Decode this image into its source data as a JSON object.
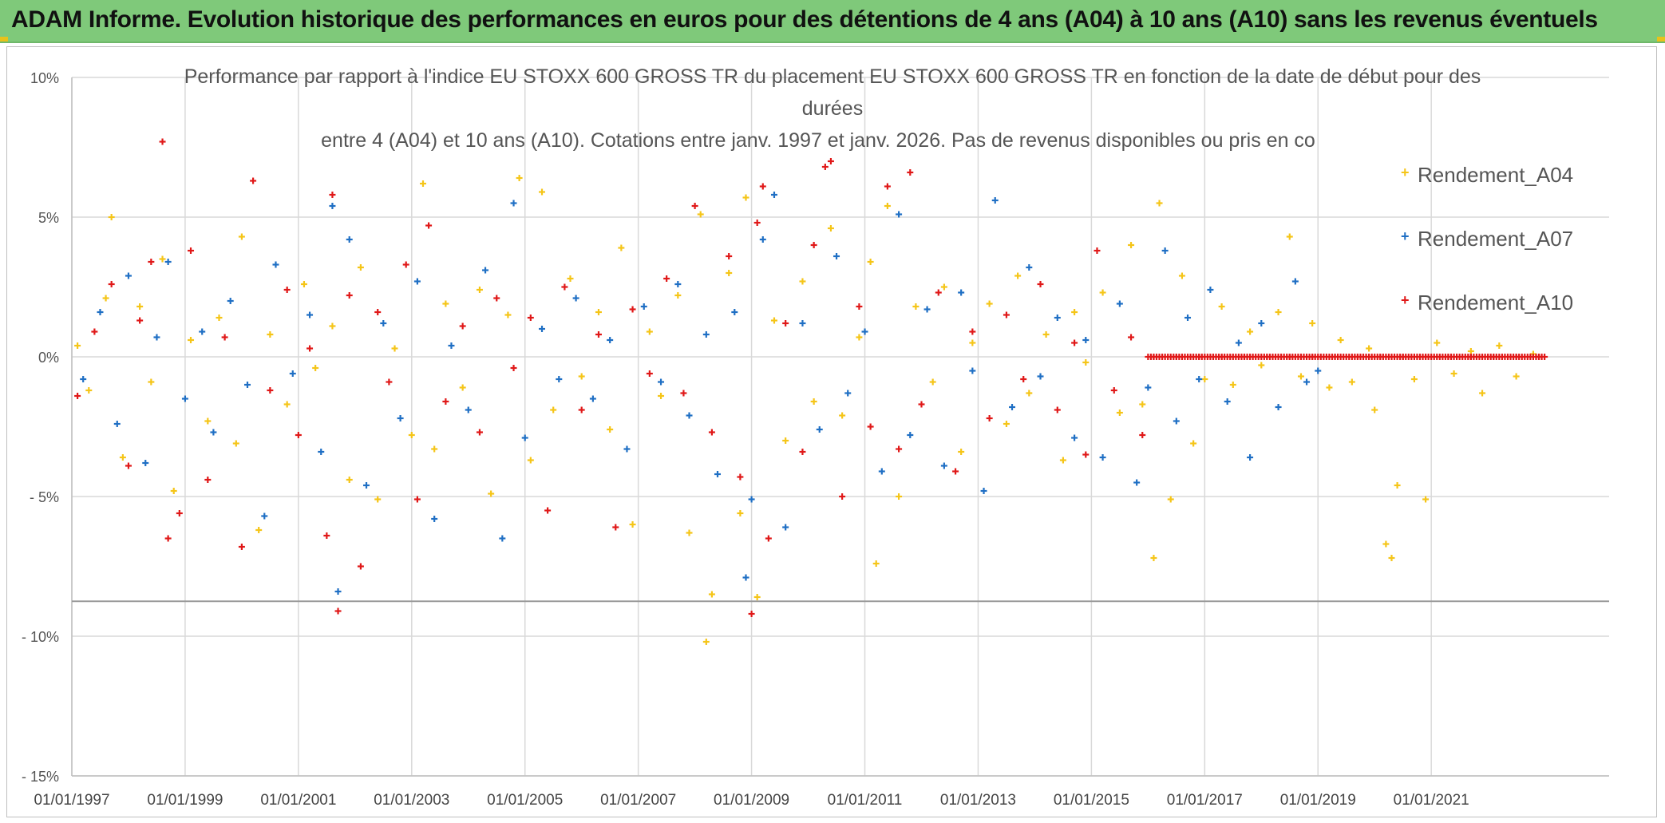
{
  "banner": {
    "title": "ADAM Informe. Evolution historique des performances en euros pour des détentions de 4 ans (A04) à 10 ans (A10) sans les revenus éventuels",
    "color": "#7fc97a"
  },
  "chart_data": {
    "type": "scatter",
    "title_lines": [
      "Performance par rapport à l'indice EU STOXX 600 GROSS TR  du placement EU STOXX 600 GROSS TR en fonction de la date de début pour des",
      "durées",
      "entre 4 (A04) et 10 ans (A10). Cotations entre janv. 1997 et janv. 2026. Pas de revenus disponibles ou pris en co"
    ],
    "xlabel": "",
    "ylabel": "",
    "x_range": [
      1997.0,
      2023.0
    ],
    "ylim": [
      -15,
      10
    ],
    "y_ticks": [
      10,
      5,
      0,
      -5,
      -10,
      -15
    ],
    "y_tick_labels": [
      "10%",
      "5%",
      "0%",
      "- 5%",
      "- 10%",
      "- 15%"
    ],
    "x_ticks": [
      1997,
      1999,
      2001,
      2003,
      2005,
      2007,
      2009,
      2011,
      2013,
      2015,
      2017,
      2019,
      2021
    ],
    "x_tick_labels": [
      "01/01/1997",
      "01/01/1999",
      "01/01/2001",
      "01/01/2003",
      "01/01/2005",
      "01/01/2007",
      "01/01/2009",
      "01/01/2011",
      "01/01/2013",
      "01/01/2015",
      "01/01/2017",
      "01/01/2019",
      "01/01/2021"
    ],
    "grid": true,
    "legend_position": "right",
    "marker": "+",
    "series": [
      {
        "name": "Rendement_A04",
        "color": "#f5c518",
        "points": [
          [
            1997.1,
            0.4
          ],
          [
            1997.3,
            -1.2
          ],
          [
            1997.6,
            2.1
          ],
          [
            1997.7,
            5.0
          ],
          [
            1997.9,
            -3.6
          ],
          [
            1998.2,
            1.8
          ],
          [
            1998.4,
            -0.9
          ],
          [
            1998.6,
            3.5
          ],
          [
            1998.8,
            -4.8
          ],
          [
            1999.1,
            0.6
          ],
          [
            1999.4,
            -2.3
          ],
          [
            1999.6,
            1.4
          ],
          [
            1999.9,
            -3.1
          ],
          [
            2000.0,
            4.3
          ],
          [
            2000.3,
            -6.2
          ],
          [
            2000.5,
            0.8
          ],
          [
            2000.8,
            -1.7
          ],
          [
            2001.1,
            2.6
          ],
          [
            2001.3,
            -0.4
          ],
          [
            2001.6,
            1.1
          ],
          [
            2001.9,
            -4.4
          ],
          [
            2002.1,
            3.2
          ],
          [
            2002.4,
            -5.1
          ],
          [
            2002.7,
            0.3
          ],
          [
            2003.0,
            -2.8
          ],
          [
            2003.2,
            6.2
          ],
          [
            2003.4,
            -3.3
          ],
          [
            2003.6,
            1.9
          ],
          [
            2003.9,
            -1.1
          ],
          [
            2004.2,
            2.4
          ],
          [
            2004.4,
            -4.9
          ],
          [
            2004.7,
            1.5
          ],
          [
            2004.9,
            6.4
          ],
          [
            2005.1,
            -3.7
          ],
          [
            2005.3,
            5.9
          ],
          [
            2005.5,
            -1.9
          ],
          [
            2005.8,
            2.8
          ],
          [
            2006.0,
            -0.7
          ],
          [
            2006.3,
            1.6
          ],
          [
            2006.5,
            -2.6
          ],
          [
            2006.7,
            3.9
          ],
          [
            2006.9,
            -6.0
          ],
          [
            2007.2,
            0.9
          ],
          [
            2007.4,
            -1.4
          ],
          [
            2007.7,
            2.2
          ],
          [
            2007.9,
            -6.3
          ],
          [
            2008.1,
            5.1
          ],
          [
            2008.2,
            -10.2
          ],
          [
            2008.3,
            -8.5
          ],
          [
            2008.6,
            3.0
          ],
          [
            2008.8,
            -5.6
          ],
          [
            2008.9,
            5.7
          ],
          [
            2009.1,
            -8.6
          ],
          [
            2009.4,
            1.3
          ],
          [
            2009.6,
            -3.0
          ],
          [
            2009.9,
            2.7
          ],
          [
            2010.1,
            -1.6
          ],
          [
            2010.4,
            4.6
          ],
          [
            2010.6,
            -2.1
          ],
          [
            2010.9,
            0.7
          ],
          [
            2011.1,
            3.4
          ],
          [
            2011.2,
            -7.4
          ],
          [
            2011.4,
            5.4
          ],
          [
            2011.6,
            -5.0
          ],
          [
            2011.9,
            1.8
          ],
          [
            2012.2,
            -0.9
          ],
          [
            2012.4,
            2.5
          ],
          [
            2012.7,
            -3.4
          ],
          [
            2012.9,
            0.5
          ],
          [
            2013.2,
            1.9
          ],
          [
            2013.5,
            -2.4
          ],
          [
            2013.7,
            2.9
          ],
          [
            2013.9,
            -1.3
          ],
          [
            2014.2,
            0.8
          ],
          [
            2014.5,
            -3.7
          ],
          [
            2014.7,
            1.6
          ],
          [
            2014.9,
            -0.2
          ],
          [
            2015.2,
            2.3
          ],
          [
            2015.5,
            -2.0
          ],
          [
            2015.7,
            4.0
          ],
          [
            2015.9,
            -1.7
          ],
          [
            2016.1,
            -7.2
          ],
          [
            2016.2,
            5.5
          ],
          [
            2016.4,
            -5.1
          ],
          [
            2016.6,
            2.9
          ],
          [
            2016.8,
            -3.1
          ],
          [
            2017.0,
            -0.8
          ],
          [
            2017.3,
            1.8
          ],
          [
            2017.5,
            -1.0
          ],
          [
            2017.8,
            0.9
          ],
          [
            2018.0,
            -0.3
          ],
          [
            2018.3,
            1.6
          ],
          [
            2018.5,
            4.3
          ],
          [
            2018.7,
            -0.7
          ],
          [
            2018.9,
            1.2
          ],
          [
            2019.2,
            -1.1
          ],
          [
            2019.4,
            0.6
          ],
          [
            2019.6,
            -0.9
          ],
          [
            2019.9,
            0.3
          ],
          [
            2020.0,
            -1.9
          ],
          [
            2020.2,
            -6.7
          ],
          [
            2020.3,
            -7.2
          ],
          [
            2020.4,
            -4.6
          ],
          [
            2020.7,
            -0.8
          ],
          [
            2020.9,
            -5.1
          ],
          [
            2021.1,
            0.5
          ],
          [
            2021.4,
            -0.6
          ],
          [
            2021.7,
            0.2
          ],
          [
            2021.9,
            -1.3
          ],
          [
            2022.2,
            0.4
          ],
          [
            2022.5,
            -0.7
          ],
          [
            2022.8,
            0.1
          ]
        ]
      },
      {
        "name": "Rendement_A07",
        "color": "#1f6fc4",
        "points": [
          [
            1997.2,
            -0.8
          ],
          [
            1997.5,
            1.6
          ],
          [
            1997.8,
            -2.4
          ],
          [
            1998.0,
            2.9
          ],
          [
            1998.3,
            -3.8
          ],
          [
            1998.5,
            0.7
          ],
          [
            1998.7,
            3.4
          ],
          [
            1999.0,
            -1.5
          ],
          [
            1999.3,
            0.9
          ],
          [
            1999.5,
            -2.7
          ],
          [
            1999.8,
            2.0
          ],
          [
            2000.1,
            -1.0
          ],
          [
            2000.4,
            -5.7
          ],
          [
            2000.6,
            3.3
          ],
          [
            2000.9,
            -0.6
          ],
          [
            2001.2,
            1.5
          ],
          [
            2001.4,
            -3.4
          ],
          [
            2001.6,
            5.4
          ],
          [
            2001.7,
            -8.4
          ],
          [
            2001.9,
            4.2
          ],
          [
            2002.2,
            -4.6
          ],
          [
            2002.5,
            1.2
          ],
          [
            2002.8,
            -2.2
          ],
          [
            2003.1,
            2.7
          ],
          [
            2003.4,
            -5.8
          ],
          [
            2003.7,
            0.4
          ],
          [
            2004.0,
            -1.9
          ],
          [
            2004.3,
            3.1
          ],
          [
            2004.6,
            -6.5
          ],
          [
            2004.8,
            5.5
          ],
          [
            2005.0,
            -2.9
          ],
          [
            2005.3,
            1.0
          ],
          [
            2005.6,
            -0.8
          ],
          [
            2005.9,
            2.1
          ],
          [
            2006.2,
            -1.5
          ],
          [
            2006.5,
            0.6
          ],
          [
            2006.8,
            -3.3
          ],
          [
            2007.1,
            1.8
          ],
          [
            2007.4,
            -0.9
          ],
          [
            2007.7,
            2.6
          ],
          [
            2007.9,
            -2.1
          ],
          [
            2008.2,
            0.8
          ],
          [
            2008.4,
            -4.2
          ],
          [
            2008.7,
            1.6
          ],
          [
            2008.9,
            -7.9
          ],
          [
            2009.0,
            -5.1
          ],
          [
            2009.2,
            4.2
          ],
          [
            2009.4,
            5.8
          ],
          [
            2009.6,
            -6.1
          ],
          [
            2009.9,
            1.2
          ],
          [
            2010.2,
            -2.6
          ],
          [
            2010.5,
            3.6
          ],
          [
            2010.7,
            -1.3
          ],
          [
            2011.0,
            0.9
          ],
          [
            2011.3,
            -4.1
          ],
          [
            2011.6,
            5.1
          ],
          [
            2011.8,
            -2.8
          ],
          [
            2012.1,
            1.7
          ],
          [
            2012.4,
            -3.9
          ],
          [
            2012.7,
            2.3
          ],
          [
            2012.9,
            -0.5
          ],
          [
            2013.1,
            -4.8
          ],
          [
            2013.3,
            5.6
          ],
          [
            2013.6,
            -1.8
          ],
          [
            2013.9,
            3.2
          ],
          [
            2014.1,
            -0.7
          ],
          [
            2014.4,
            1.4
          ],
          [
            2014.7,
            -2.9
          ],
          [
            2014.9,
            0.6
          ],
          [
            2015.2,
            -3.6
          ],
          [
            2015.5,
            1.9
          ],
          [
            2015.8,
            -4.5
          ],
          [
            2016.0,
            -1.1
          ],
          [
            2016.3,
            3.8
          ],
          [
            2016.5,
            -2.3
          ],
          [
            2016.7,
            1.4
          ],
          [
            2016.9,
            -0.8
          ],
          [
            2017.1,
            2.4
          ],
          [
            2017.4,
            -1.6
          ],
          [
            2017.6,
            0.5
          ],
          [
            2017.8,
            -3.6
          ],
          [
            2018.0,
            1.2
          ],
          [
            2018.3,
            -1.8
          ],
          [
            2018.6,
            2.7
          ],
          [
            2018.8,
            -0.9
          ],
          [
            2019.0,
            -0.5
          ]
        ]
      },
      {
        "name": "Rendement_A10",
        "color": "#e01818",
        "points": [
          [
            1997.1,
            -1.4
          ],
          [
            1997.4,
            0.9
          ],
          [
            1997.7,
            2.6
          ],
          [
            1998.0,
            -3.9
          ],
          [
            1998.2,
            1.3
          ],
          [
            1998.4,
            3.4
          ],
          [
            1998.6,
            7.7
          ],
          [
            1998.7,
            -6.5
          ],
          [
            1998.9,
            -5.6
          ],
          [
            1999.1,
            3.8
          ],
          [
            1999.4,
            -4.4
          ],
          [
            1999.7,
            0.7
          ],
          [
            2000.0,
            -6.8
          ],
          [
            2000.2,
            6.3
          ],
          [
            2000.5,
            -1.2
          ],
          [
            2000.8,
            2.4
          ],
          [
            2001.0,
            -2.8
          ],
          [
            2001.2,
            0.3
          ],
          [
            2001.5,
            -6.4
          ],
          [
            2001.6,
            5.8
          ],
          [
            2001.7,
            -9.1
          ],
          [
            2001.9,
            2.2
          ],
          [
            2002.1,
            -7.5
          ],
          [
            2002.4,
            1.6
          ],
          [
            2002.6,
            -0.9
          ],
          [
            2002.9,
            3.3
          ],
          [
            2003.1,
            -5.1
          ],
          [
            2003.3,
            4.7
          ],
          [
            2003.6,
            -1.6
          ],
          [
            2003.9,
            1.1
          ],
          [
            2004.2,
            -2.7
          ],
          [
            2004.5,
            2.1
          ],
          [
            2004.8,
            -0.4
          ],
          [
            2005.1,
            1.4
          ],
          [
            2005.4,
            -5.5
          ],
          [
            2005.7,
            2.5
          ],
          [
            2006.0,
            -1.9
          ],
          [
            2006.3,
            0.8
          ],
          [
            2006.6,
            -6.1
          ],
          [
            2006.9,
            1.7
          ],
          [
            2007.2,
            -0.6
          ],
          [
            2007.5,
            2.8
          ],
          [
            2007.8,
            -1.3
          ],
          [
            2008.0,
            5.4
          ],
          [
            2008.3,
            -2.7
          ],
          [
            2008.6,
            3.6
          ],
          [
            2008.8,
            -4.3
          ],
          [
            2009.0,
            -9.2
          ],
          [
            2009.1,
            4.8
          ],
          [
            2009.2,
            6.1
          ],
          [
            2009.3,
            -6.5
          ],
          [
            2009.6,
            1.2
          ],
          [
            2009.9,
            -3.4
          ],
          [
            2010.1,
            4.0
          ],
          [
            2010.3,
            6.8
          ],
          [
            2010.4,
            7.0
          ],
          [
            2010.6,
            -5.0
          ],
          [
            2010.9,
            1.8
          ],
          [
            2011.1,
            -2.5
          ],
          [
            2011.4,
            6.1
          ],
          [
            2011.6,
            -3.3
          ],
          [
            2011.8,
            6.6
          ],
          [
            2012.0,
            -1.7
          ],
          [
            2012.3,
            2.3
          ],
          [
            2012.6,
            -4.1
          ],
          [
            2012.9,
            0.9
          ],
          [
            2013.2,
            -2.2
          ],
          [
            2013.5,
            1.5
          ],
          [
            2013.8,
            -0.8
          ],
          [
            2014.1,
            2.6
          ],
          [
            2014.4,
            -1.9
          ],
          [
            2014.7,
            0.5
          ],
          [
            2014.9,
            -3.5
          ],
          [
            2015.1,
            3.8
          ],
          [
            2015.4,
            -1.2
          ],
          [
            2015.7,
            0.7
          ],
          [
            2015.9,
            -2.8
          ],
          [
            2016.1,
            0.0
          ],
          [
            2016.5,
            0.0
          ],
          [
            2016.9,
            0.0
          ],
          [
            2017.3,
            0.0
          ],
          [
            2017.7,
            0.0
          ],
          [
            2018.1,
            0.0
          ],
          [
            2018.5,
            0.0
          ],
          [
            2018.9,
            0.0
          ],
          [
            2019.3,
            0.0
          ],
          [
            2019.7,
            0.0
          ],
          [
            2020.1,
            0.0
          ],
          [
            2020.5,
            0.0
          ],
          [
            2020.9,
            0.0
          ],
          [
            2021.3,
            0.0
          ],
          [
            2021.7,
            0.0
          ],
          [
            2022.1,
            0.0
          ],
          [
            2022.5,
            0.0
          ],
          [
            2022.9,
            0.0
          ]
        ]
      }
    ]
  }
}
